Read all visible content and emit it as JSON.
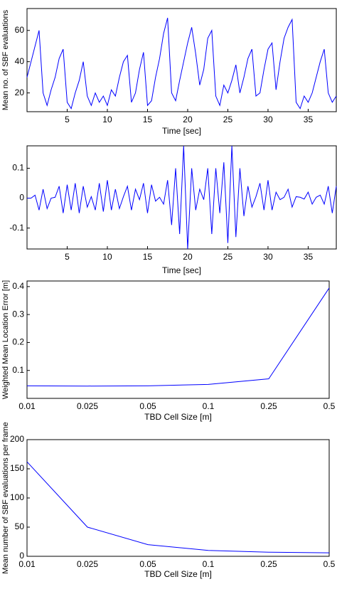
{
  "chart_data": [
    {
      "type": "line",
      "xlabel": "Time [sec]",
      "ylabel": "Mean no. of SBF evaluations",
      "x": [
        0,
        0.5,
        1,
        1.5,
        2,
        2.5,
        3,
        3.5,
        4,
        4.5,
        5,
        5.5,
        6,
        6.5,
        7,
        7.5,
        8,
        8.5,
        9,
        9.5,
        10,
        10.5,
        11,
        11.5,
        12,
        12.5,
        13,
        13.5,
        14,
        14.5,
        15,
        15.5,
        16,
        16.5,
        17,
        17.5,
        18,
        18.5,
        19,
        19.5,
        20,
        20.5,
        21,
        21.5,
        22,
        22.5,
        23,
        23.5,
        24,
        24.5,
        25,
        25.5,
        26,
        26.5,
        27,
        27.5,
        28,
        28.5,
        29,
        29.5,
        30,
        30.5,
        31,
        31.5,
        32,
        32.5,
        33,
        33.5,
        34,
        34.5,
        35,
        35.5,
        36,
        36.5,
        37,
        37.5,
        38,
        38.5
      ],
      "series": [
        {
          "color": "#0000ff",
          "values": [
            30,
            40,
            50,
            60,
            20,
            12,
            22,
            30,
            42,
            48,
            14,
            10,
            20,
            28,
            40,
            18,
            12,
            20,
            14,
            18,
            12,
            22,
            18,
            30,
            40,
            44,
            14,
            20,
            35,
            46,
            12,
            15,
            30,
            42,
            58,
            68,
            20,
            15,
            28,
            40,
            52,
            62,
            45,
            25,
            35,
            55,
            60,
            18,
            12,
            25,
            20,
            28,
            38,
            20,
            30,
            42,
            48,
            18,
            20,
            35,
            48,
            52,
            22,
            40,
            55,
            62,
            67,
            14,
            10,
            18,
            14,
            20,
            30,
            40,
            48,
            20,
            14,
            18
          ]
        }
      ],
      "xlim": [
        0,
        38.5
      ],
      "xticks": [
        5,
        10,
        15,
        20,
        25,
        30,
        35
      ],
      "ylim": [
        8,
        74
      ],
      "yticks": [
        20,
        40,
        60
      ]
    },
    {
      "type": "line",
      "xlabel": "Time [sec]",
      "x": [
        0,
        0.5,
        1,
        1.5,
        2,
        2.5,
        3,
        3.5,
        4,
        4.5,
        5,
        5.5,
        6,
        6.5,
        7,
        7.5,
        8,
        8.5,
        9,
        9.5,
        10,
        10.5,
        11,
        11.5,
        12,
        12.5,
        13,
        13.5,
        14,
        14.5,
        15,
        15.5,
        16,
        16.5,
        17,
        17.5,
        18,
        18.5,
        19,
        19.5,
        20,
        20.5,
        21,
        21.5,
        22,
        22.5,
        23,
        23.5,
        24,
        24.5,
        25,
        25.5,
        26,
        26.5,
        27,
        27.5,
        28,
        28.5,
        29,
        29.5,
        30,
        30.5,
        31,
        31.5,
        32,
        32.5,
        33,
        33.5,
        34,
        34.5,
        35,
        35.5,
        36,
        36.5,
        37,
        37.5,
        38,
        38.5
      ],
      "series": [
        {
          "color": "#0000ff",
          "values": [
            0,
            0,
            0.01,
            -0.04,
            0.03,
            -0.035,
            0,
            0.003,
            0.04,
            -0.05,
            0.045,
            -0.04,
            0.05,
            -0.05,
            0.04,
            -0.03,
            0.005,
            -0.04,
            0.05,
            -0.045,
            0.06,
            -0.04,
            0.03,
            -0.035,
            0.005,
            0.04,
            -0.04,
            0.03,
            -0.005,
            0.05,
            -0.05,
            0.045,
            -0.01,
            0.003,
            -0.02,
            0.06,
            -0.09,
            0.1,
            -0.12,
            0.175,
            -0.17,
            0.1,
            -0.04,
            0.03,
            -0.005,
            0.1,
            -0.12,
            0.1,
            -0.05,
            0.12,
            -0.15,
            0.175,
            -0.13,
            0.1,
            -0.06,
            0.04,
            -0.03,
            0.005,
            0.05,
            -0.04,
            0.06,
            -0.04,
            0.02,
            -0.005,
            0.003,
            0.03,
            -0.03,
            0.005,
            0.003,
            -0.003,
            0.02,
            -0.02,
            0.003,
            0.01,
            -0.02,
            0.04,
            -0.05,
            0.04
          ]
        }
      ],
      "xlim": [
        0,
        38.5
      ],
      "xticks": [
        5,
        10,
        15,
        20,
        25,
        30,
        35
      ],
      "ylim": [
        -0.17,
        0.175
      ],
      "yticks": [
        -0.1,
        0,
        0.1
      ]
    },
    {
      "type": "line",
      "xlabel": "TBD Cell Size [m]",
      "ylabel": "Weighted Mean Location Error [m]",
      "categories": [
        "0.01",
        "0.025",
        "0.05",
        "0.1",
        "0.25",
        "0.5"
      ],
      "series": [
        {
          "color": "#0000ff",
          "values": [
            0.045,
            0.044,
            0.045,
            0.05,
            0.07,
            0.395
          ]
        }
      ],
      "ylim": [
        0,
        0.42
      ],
      "yticks": [
        0.1,
        0.2,
        0.3,
        0.4
      ]
    },
    {
      "type": "line",
      "xlabel": "TBD Cell Size [m]",
      "ylabel": "Mean number of SBF evaluations per frame",
      "categories": [
        "0.01",
        "0.025",
        "0.05",
        "0.1",
        "0.25",
        "0.5"
      ],
      "series": [
        {
          "color": "#0000ff",
          "values": [
            162,
            50,
            20,
            10,
            7,
            6
          ]
        }
      ],
      "ylim": [
        0,
        200
      ],
      "yticks": [
        0,
        50,
        100,
        150,
        200
      ]
    }
  ]
}
